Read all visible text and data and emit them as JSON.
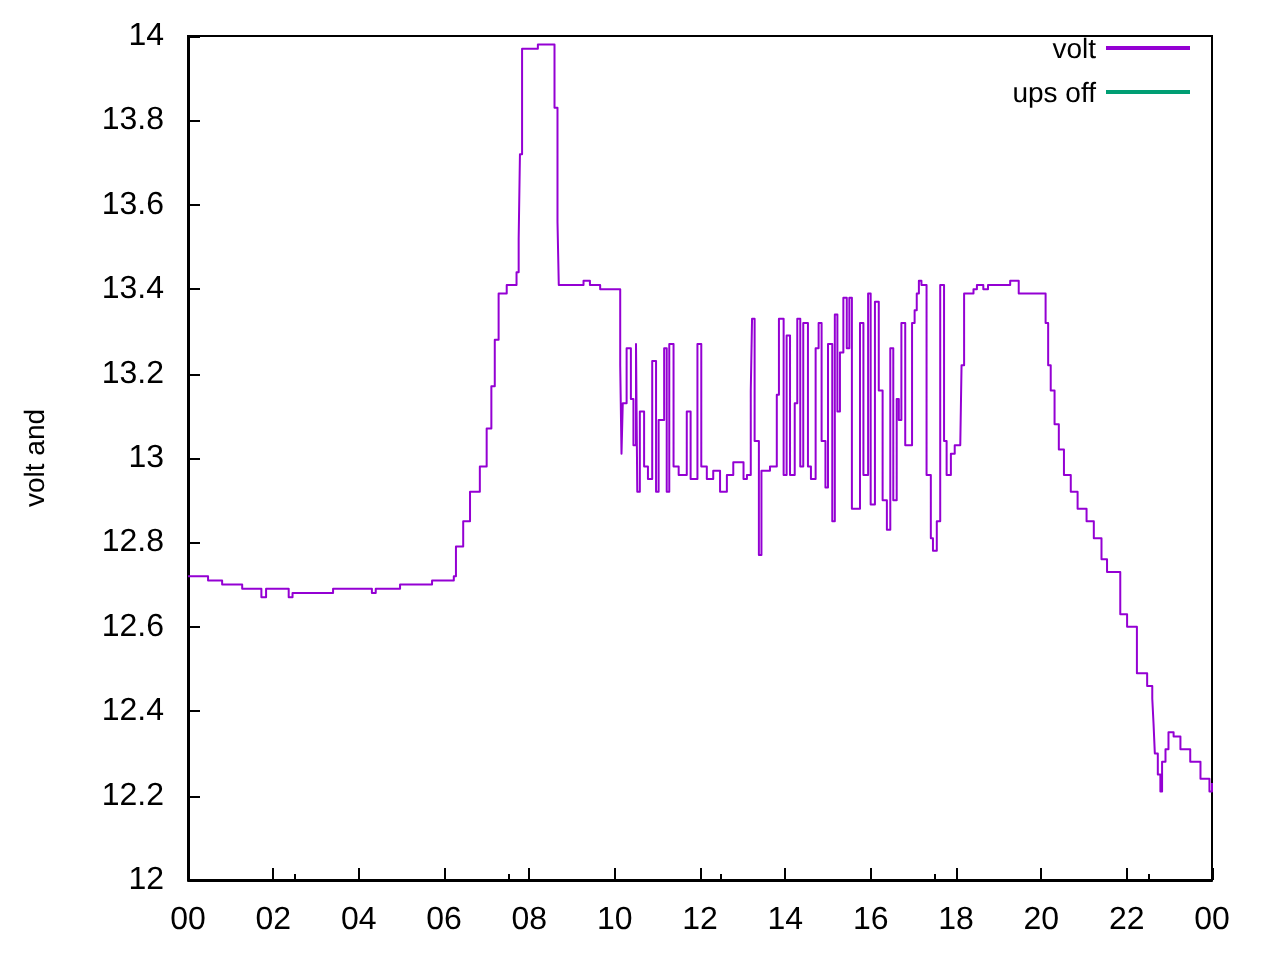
{
  "chart_data": {
    "type": "step",
    "ylabel": "volt and",
    "xlim": [
      0,
      24
    ],
    "ylim": [
      12,
      14
    ],
    "xticks": [
      {
        "value": 0,
        "label": "00"
      },
      {
        "value": 2,
        "label": "02"
      },
      {
        "value": 4,
        "label": "04"
      },
      {
        "value": 6,
        "label": "06"
      },
      {
        "value": 8,
        "label": "08"
      },
      {
        "value": 10,
        "label": "10"
      },
      {
        "value": 12,
        "label": "12"
      },
      {
        "value": 14,
        "label": "14"
      },
      {
        "value": 16,
        "label": "16"
      },
      {
        "value": 18,
        "label": "18"
      },
      {
        "value": 20,
        "label": "20"
      },
      {
        "value": 22,
        "label": "22"
      },
      {
        "value": 24,
        "label": "00"
      }
    ],
    "yticks": [
      12,
      12.2,
      12.4,
      12.6,
      12.8,
      13,
      13.2,
      13.4,
      13.6,
      13.8,
      14
    ],
    "legend": "top right",
    "grid": false,
    "series": [
      {
        "name": "volt",
        "color": "#9400d3",
        "x": [
          0,
          0.47,
          0.8,
          1.27,
          1.72,
          1.83,
          2.36,
          2.45,
          3.4,
          4.31,
          4.4,
          4.97,
          5.72,
          6.23,
          6.28,
          6.45,
          6.61,
          6.84,
          7.0,
          7.11,
          7.19,
          7.28,
          7.47,
          7.7,
          7.75,
          7.78,
          7.83,
          8.2,
          8.59,
          8.66,
          8.69,
          8.7,
          9.27,
          9.42,
          9.66,
          10.13,
          10.16,
          10.19,
          10.28,
          10.38,
          10.44,
          10.5,
          10.53,
          10.59,
          10.69,
          10.78,
          10.88,
          10.97,
          11.03,
          11.16,
          11.22,
          11.28,
          11.38,
          11.5,
          11.69,
          11.78,
          11.94,
          12.03,
          12.16,
          12.31,
          12.47,
          12.63,
          12.78,
          13.02,
          13.1,
          13.19,
          13.22,
          13.28,
          13.38,
          13.44,
          13.64,
          13.8,
          13.85,
          13.96,
          14.03,
          14.11,
          14.22,
          14.28,
          14.35,
          14.42,
          14.53,
          14.6,
          14.71,
          14.78,
          14.85,
          14.94,
          15.0,
          15.1,
          15.16,
          15.22,
          15.28,
          15.36,
          15.44,
          15.5,
          15.56,
          15.67,
          15.75,
          15.83,
          15.94,
          16.0,
          16.1,
          16.19,
          16.28,
          16.38,
          16.46,
          16.53,
          16.61,
          16.66,
          16.72,
          16.81,
          16.92,
          16.97,
          17.03,
          17.08,
          17.13,
          17.19,
          17.31,
          17.41,
          17.46,
          17.55,
          17.63,
          17.72,
          17.78,
          17.88,
          17.97,
          18.1,
          18.13,
          18.19,
          18.41,
          18.49,
          18.64,
          18.75,
          19.11,
          19.27,
          19.47,
          20.05,
          20.1,
          20.16,
          20.22,
          20.31,
          20.41,
          20.53,
          20.69,
          20.85,
          21.06,
          21.23,
          21.3,
          21.41,
          21.54,
          21.85,
          22.01,
          22.24,
          22.48,
          22.6,
          22.63,
          22.66,
          22.73,
          22.79,
          22.83,
          22.91,
          22.98,
          23.1,
          23.26,
          23.49,
          23.73,
          23.88,
          23.94,
          24.0
        ],
        "values": [
          12.72,
          12.71,
          12.7,
          12.69,
          12.67,
          12.69,
          12.67,
          12.68,
          12.69,
          12.68,
          12.69,
          12.7,
          12.71,
          12.72,
          12.79,
          12.85,
          12.92,
          12.98,
          13.07,
          13.17,
          13.28,
          13.39,
          13.41,
          13.44,
          13.52,
          13.72,
          13.97,
          13.98,
          13.83,
          13.56,
          13.41,
          13.41,
          13.42,
          13.41,
          13.4,
          13.22,
          13.01,
          13.13,
          13.26,
          13.14,
          13.03,
          13.27,
          12.92,
          13.11,
          12.98,
          12.95,
          13.23,
          12.92,
          13.09,
          13.26,
          12.92,
          13.27,
          12.98,
          12.96,
          13.11,
          12.95,
          13.27,
          12.98,
          12.95,
          12.97,
          12.92,
          12.96,
          12.99,
          12.95,
          12.96,
          13.16,
          13.33,
          13.04,
          12.77,
          12.97,
          12.98,
          13.15,
          13.33,
          12.96,
          13.29,
          12.96,
          13.13,
          13.33,
          12.98,
          13.32,
          12.98,
          12.95,
          13.26,
          13.32,
          13.04,
          12.93,
          13.27,
          12.85,
          13.34,
          13.11,
          13.25,
          13.38,
          13.26,
          13.38,
          12.88,
          12.88,
          13.32,
          12.96,
          13.39,
          12.89,
          13.37,
          13.16,
          12.9,
          12.83,
          13.26,
          12.9,
          13.14,
          13.09,
          13.32,
          13.03,
          13.03,
          13.32,
          13.35,
          13.39,
          13.42,
          13.41,
          12.96,
          12.81,
          12.78,
          12.85,
          13.41,
          13.04,
          12.96,
          13.01,
          13.03,
          13.03,
          13.22,
          13.39,
          13.4,
          13.41,
          13.4,
          13.41,
          13.41,
          13.42,
          13.39,
          13.39,
          13.32,
          13.22,
          13.16,
          13.08,
          13.02,
          12.96,
          12.92,
          12.88,
          12.85,
          12.81,
          12.81,
          12.76,
          12.73,
          12.63,
          12.6,
          12.49,
          12.46,
          12.43,
          12.37,
          12.3,
          12.25,
          12.21,
          12.28,
          12.31,
          12.35,
          12.34,
          12.31,
          12.28,
          12.24,
          12.24,
          12.21,
          12.23
        ]
      },
      {
        "name": "ups off",
        "color": "#009e73"
      }
    ]
  }
}
